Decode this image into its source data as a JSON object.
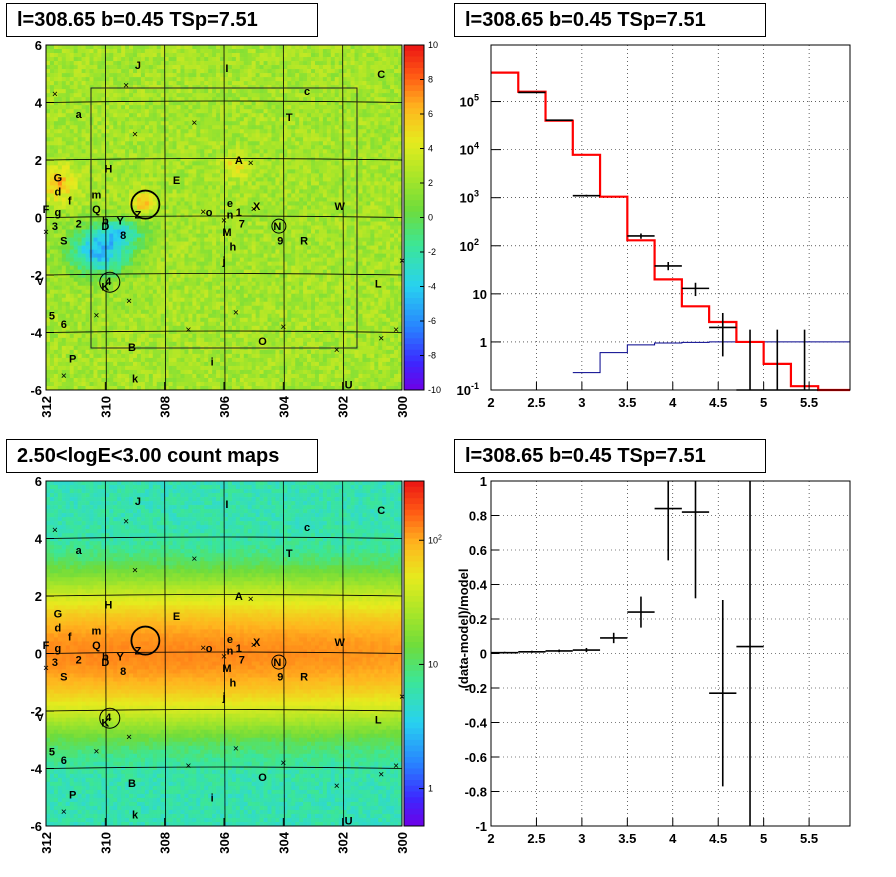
{
  "panels": {
    "top_left_title": "l=308.65 b=0.45 TSp=7.51",
    "top_right_title": "l=308.65 b=0.45 TSp=7.51",
    "bottom_left_title": "2.50<logE<3.00 count maps",
    "bottom_right_title": "l=308.65 b=0.45 TSp=7.51"
  },
  "colors": {
    "data": "#000000",
    "model": "#ff0000",
    "background_model": "#00008b",
    "grid": "#000000"
  },
  "chart_data": [
    {
      "type": "heatmap",
      "name": "ts-residual-map",
      "title": "l=308.65 b=0.45 TSp=7.51",
      "x_ticks": [
        "312",
        "310",
        "308",
        "306",
        "304",
        "302",
        "300"
      ],
      "y_ticks": [
        "6",
        "4",
        "2",
        "0",
        "-2",
        "-4",
        "-6"
      ],
      "xlim": [
        312,
        300
      ],
      "ylim": [
        -6,
        6
      ],
      "colorbar_ticks": [
        "10",
        "8",
        "6",
        "4",
        "2",
        "0",
        "-2",
        "-4",
        "-6",
        "-8",
        "-10"
      ],
      "colorbar_range": [
        -10,
        10
      ],
      "sources": [
        {
          "label": "J",
          "l": 308.9,
          "b": 5.3
        },
        {
          "label": "I",
          "l": 305.9,
          "b": 5.2
        },
        {
          "label": "C",
          "l": 300.7,
          "b": 5.0
        },
        {
          "label": "c",
          "l": 303.2,
          "b": 4.4
        },
        {
          "label": "a",
          "l": 310.9,
          "b": 3.6
        },
        {
          "label": "T",
          "l": 303.8,
          "b": 3.5
        },
        {
          "label": "A",
          "l": 305.5,
          "b": 2.0
        },
        {
          "label": "H",
          "l": 309.9,
          "b": 1.7
        },
        {
          "label": "E",
          "l": 307.6,
          "b": 1.3
        },
        {
          "label": "G",
          "l": 311.6,
          "b": 1.4
        },
        {
          "label": "d",
          "l": 311.6,
          "b": 0.9
        },
        {
          "label": "f",
          "l": 311.2,
          "b": 0.6
        },
        {
          "label": "m",
          "l": 310.3,
          "b": 0.8
        },
        {
          "label": "F",
          "l": 312.0,
          "b": 0.3
        },
        {
          "label": "g",
          "l": 311.6,
          "b": 0.2
        },
        {
          "label": "Q",
          "l": 310.3,
          "b": 0.3
        },
        {
          "label": "e",
          "l": 305.8,
          "b": 0.5
        },
        {
          "label": "X",
          "l": 304.9,
          "b": 0.4
        },
        {
          "label": "W",
          "l": 302.1,
          "b": 0.4
        },
        {
          "label": "o",
          "l": 306.5,
          "b": 0.2
        },
        {
          "label": "n",
          "l": 305.8,
          "b": 0.1
        },
        {
          "label": "1",
          "l": 305.5,
          "b": 0.2
        },
        {
          "label": "Z",
          "l": 308.9,
          "b": 0.1
        },
        {
          "label": "b",
          "l": 310.0,
          "b": -0.1
        },
        {
          "label": "Y",
          "l": 309.5,
          "b": -0.1
        },
        {
          "label": "2",
          "l": 310.9,
          "b": -0.2
        },
        {
          "label": "3",
          "l": 311.7,
          "b": -0.3
        },
        {
          "label": "D",
          "l": 310.0,
          "b": -0.3
        },
        {
          "label": "7",
          "l": 305.4,
          "b": -0.2
        },
        {
          "label": "N",
          "l": 304.2,
          "b": -0.3
        },
        {
          "label": "8",
          "l": 309.4,
          "b": -0.6
        },
        {
          "label": "M",
          "l": 305.9,
          "b": -0.5
        },
        {
          "label": "S",
          "l": 311.4,
          "b": -0.8
        },
        {
          "label": "9",
          "l": 304.1,
          "b": -0.8
        },
        {
          "label": "R",
          "l": 303.3,
          "b": -0.8
        },
        {
          "label": "h",
          "l": 305.7,
          "b": -1.0
        },
        {
          "label": "j",
          "l": 306.0,
          "b": -1.5
        },
        {
          "label": "4",
          "l": 309.9,
          "b": -2.2
        },
        {
          "label": "V",
          "l": 312.2,
          "b": -2.2
        },
        {
          "label": "K",
          "l": 310.0,
          "b": -2.4
        },
        {
          "label": "L",
          "l": 300.8,
          "b": -2.3
        },
        {
          "label": "5",
          "l": 311.8,
          "b": -3.4
        },
        {
          "label": "6",
          "l": 311.4,
          "b": -3.7
        },
        {
          "label": "O",
          "l": 304.7,
          "b": -4.3
        },
        {
          "label": "B",
          "l": 309.1,
          "b": -4.5
        },
        {
          "label": "P",
          "l": 311.1,
          "b": -4.9
        },
        {
          "label": "i",
          "l": 306.4,
          "b": -5.0
        },
        {
          "label": "k",
          "l": 309.0,
          "b": -5.6
        },
        {
          "label": "U",
          "l": 301.8,
          "b": -5.8
        }
      ]
    },
    {
      "type": "line",
      "name": "counts-spectrum",
      "title": "l=308.65 b=0.45 TSp=7.51",
      "x_ticks": [
        "2",
        "2.5",
        "3",
        "3.5",
        "4",
        "4.5",
        "5",
        "5.5"
      ],
      "y_ticks": [
        "10^-1",
        "1",
        "10",
        "10^2",
        "10^3",
        "10^4",
        "10^5"
      ],
      "xlim": [
        2,
        5.95
      ],
      "ylim": [
        0.1,
        1500000
      ],
      "y_scale": "log",
      "bin_edges": [
        2.0,
        2.3,
        2.6,
        2.9,
        3.2,
        3.5,
        3.8,
        4.1,
        4.4,
        4.7,
        5.0,
        5.3,
        5.6,
        5.95
      ],
      "series": [
        {
          "name": "",
          "kind": "model-step",
          "color": "red",
          "values": [
            400000,
            160000,
            40000,
            7800,
            1050,
            130,
            20,
            5.5,
            2.6,
            1.0,
            0.35,
            0.12,
            0.1
          ]
        },
        {
          "name": "",
          "kind": "background-step",
          "color": "blue",
          "values": [
            null,
            null,
            null,
            0.23,
            0.6,
            0.87,
            0.95,
            0.98,
            1.0,
            1.0,
            1.0,
            1.0,
            1.0
          ]
        },
        {
          "name": "",
          "kind": "data-points",
          "color": "black",
          "points": [
            {
              "x": 2.45,
              "y": 155000,
              "lo": 154000,
              "hi": 156000
            },
            {
              "x": 2.75,
              "y": 41000,
              "lo": 40500,
              "hi": 41500
            },
            {
              "x": 3.05,
              "y": 1100,
              "lo": 1050,
              "hi": 1150
            },
            {
              "x": 3.65,
              "y": 160,
              "lo": 140,
              "hi": 180
            },
            {
              "x": 3.95,
              "y": 38,
              "lo": 31,
              "hi": 46
            },
            {
              "x": 4.25,
              "y": 13,
              "lo": 9,
              "hi": 17
            },
            {
              "x": 4.55,
              "y": 2.0,
              "lo": 0.5,
              "hi": 4.0
            },
            {
              "x": 4.85,
              "y": 0.1,
              "lo": 0.1,
              "hi": 1.8
            },
            {
              "x": 5.15,
              "y": 0.1,
              "lo": 0.1,
              "hi": 1.8
            },
            {
              "x": 5.45,
              "y": 0.1,
              "lo": 0.1,
              "hi": 1.8
            }
          ]
        }
      ]
    },
    {
      "type": "heatmap",
      "name": "count-map",
      "title": "2.50<logE<3.00 count maps",
      "x_ticks": [
        "312",
        "310",
        "308",
        "306",
        "304",
        "302",
        "300"
      ],
      "y_ticks": [
        "6",
        "4",
        "2",
        "0",
        "-2",
        "-4",
        "-6"
      ],
      "xlim": [
        312,
        300
      ],
      "ylim": [
        -6,
        6
      ],
      "colorbar_ticks": [
        "10^2",
        "10",
        "1"
      ],
      "colorbar_scale": "log",
      "colorbar_range": [
        0.5,
        300
      ]
    },
    {
      "type": "scatter",
      "name": "residual-plot",
      "title": "l=308.65 b=0.45 TSp=7.51",
      "ylabel": "(data-model)/model",
      "x_ticks": [
        "2",
        "2.5",
        "3",
        "3.5",
        "4",
        "4.5",
        "5",
        "5.5"
      ],
      "y_ticks": [
        "1",
        "0.8",
        "0.6",
        "0.4",
        "0.2",
        "0",
        "-0.2",
        "-0.4",
        "-0.6",
        "-0.8",
        "-1"
      ],
      "xlim": [
        2,
        5.95
      ],
      "ylim": [
        -1,
        1
      ],
      "points": [
        {
          "x": 2.15,
          "y": 0.005,
          "xerr": 0.15,
          "yerr": 0.005
        },
        {
          "x": 2.45,
          "y": 0.01,
          "xerr": 0.15,
          "yerr": 0.006
        },
        {
          "x": 2.75,
          "y": 0.015,
          "xerr": 0.15,
          "yerr": 0.008
        },
        {
          "x": 3.05,
          "y": 0.02,
          "xerr": 0.15,
          "yerr": 0.012
        },
        {
          "x": 3.35,
          "y": 0.09,
          "xerr": 0.15,
          "yerr": 0.03
        },
        {
          "x": 3.65,
          "y": 0.24,
          "xerr": 0.15,
          "yerr": 0.09
        },
        {
          "x": 3.95,
          "y": 0.84,
          "xerr": 0.15,
          "yerr": 0.3
        },
        {
          "x": 4.25,
          "y": 0.82,
          "xerr": 0.15,
          "yerr": 0.5
        },
        {
          "x": 4.55,
          "y": -0.23,
          "xerr": 0.15,
          "yerr": 0.54
        },
        {
          "x": 4.85,
          "y": 0.04,
          "xerr": 0.15,
          "yerr": 1.05
        }
      ]
    }
  ]
}
